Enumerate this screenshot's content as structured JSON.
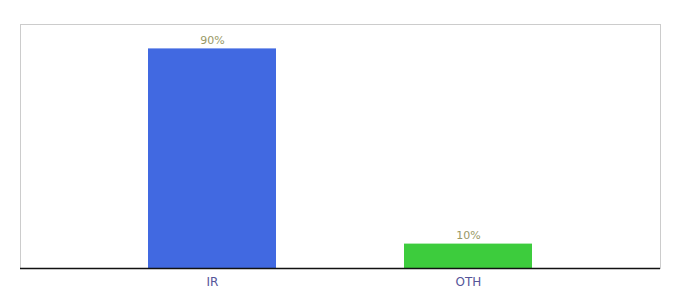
{
  "chart_data": {
    "type": "bar",
    "categories": [
      "IR",
      "OTH"
    ],
    "values": [
      90,
      10
    ],
    "colors": [
      "#4169e1",
      "#3dcc3d"
    ],
    "value_labels": [
      "90%",
      "10%"
    ],
    "data_labels": true,
    "ylim": [
      0,
      100
    ],
    "tick_labels": "x",
    "grid": false
  }
}
